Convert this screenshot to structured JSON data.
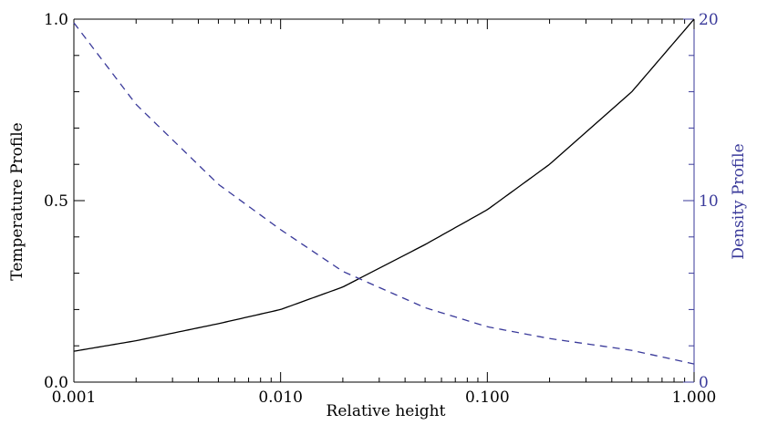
{
  "chart_data": {
    "type": "line",
    "x_scale": "log",
    "xlim": [
      0.001,
      1.0
    ],
    "xlabel": "Relative height",
    "xticks": [
      {
        "value": 0.001,
        "label": "0.001"
      },
      {
        "value": 0.01,
        "label": "0.010"
      },
      {
        "value": 0.1,
        "label": "0.100"
      },
      {
        "value": 1.0,
        "label": "1.000"
      }
    ],
    "y_left": {
      "label": "Temperature Profile",
      "ylim": [
        0,
        1.0
      ],
      "ticks": [
        {
          "value": 0,
          "label": "0.0"
        },
        {
          "value": 0.5,
          "label": "0.5"
        },
        {
          "value": 1.0,
          "label": "1.0"
        }
      ],
      "color": "#000000"
    },
    "y_right": {
      "label": "Density Profile",
      "ylim": [
        0,
        20
      ],
      "ticks": [
        {
          "value": 0,
          "label": "0"
        },
        {
          "value": 10,
          "label": "10"
        },
        {
          "value": 20,
          "label": "20"
        }
      ],
      "color": "#3a3a9a"
    },
    "series": [
      {
        "axis": "left",
        "style": "solid",
        "color": "#000000",
        "x": [
          0.001,
          0.002,
          0.005,
          0.01,
          0.02,
          0.05,
          0.1,
          0.2,
          0.5,
          1.0
        ],
        "y": [
          0.085,
          0.114,
          0.161,
          0.2,
          0.262,
          0.379,
          0.475,
          0.6,
          0.8,
          1.0
        ]
      },
      {
        "axis": "right",
        "style": "dashed",
        "color": "#3a3a9a",
        "x": [
          0.001,
          0.002,
          0.005,
          0.01,
          0.02,
          0.05,
          0.1,
          0.2,
          0.5,
          1.0
        ],
        "y": [
          19.8,
          15.3,
          10.9,
          8.4,
          6.1,
          4.1,
          3.05,
          2.4,
          1.75,
          1.0
        ]
      }
    ],
    "grid": false
  }
}
